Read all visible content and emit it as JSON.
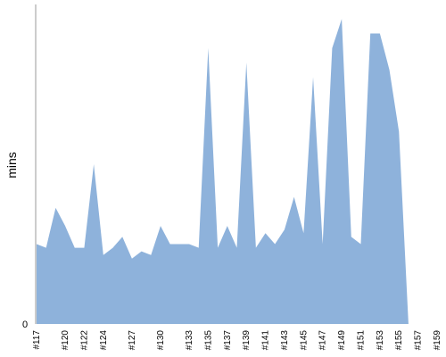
{
  "chart_data": {
    "type": "area",
    "ylabel": "mins",
    "y_zero_label": "0",
    "ylim": [
      0,
      88
    ],
    "color": "#8eb2db",
    "axis_color": "#999999",
    "x": [
      "#117",
      "#118",
      "#119",
      "#120",
      "#121",
      "#122",
      "#123",
      "#124",
      "#125",
      "#126",
      "#127",
      "#128",
      "#129",
      "#130",
      "#131",
      "#132",
      "#133",
      "#134",
      "#135",
      "#136",
      "#137",
      "#138",
      "#139",
      "#140",
      "#141",
      "#142",
      "#143",
      "#144",
      "#145",
      "#146",
      "#147",
      "#148",
      "#149",
      "#150",
      "#151",
      "#152",
      "#153",
      "#154",
      "#155",
      "#156",
      "#157",
      "#158",
      "#159"
    ],
    "values": [
      22,
      21,
      32,
      27,
      21,
      21,
      44,
      19,
      21,
      24,
      18,
      20,
      19,
      27,
      22,
      22,
      22,
      21,
      76,
      21,
      27,
      21,
      72,
      21,
      25,
      22,
      26,
      35,
      25,
      68,
      22,
      76,
      84,
      24,
      22,
      80,
      80,
      70,
      53,
      0,
      0,
      0,
      0
    ],
    "tick_labels": [
      "#117",
      "#120",
      "#122",
      "#124",
      "#127",
      "#130",
      "#133",
      "#135",
      "#137",
      "#139",
      "#141",
      "#143",
      "#145",
      "#147",
      "#149",
      "#151",
      "#153",
      "#155",
      "#157",
      "#159"
    ]
  }
}
